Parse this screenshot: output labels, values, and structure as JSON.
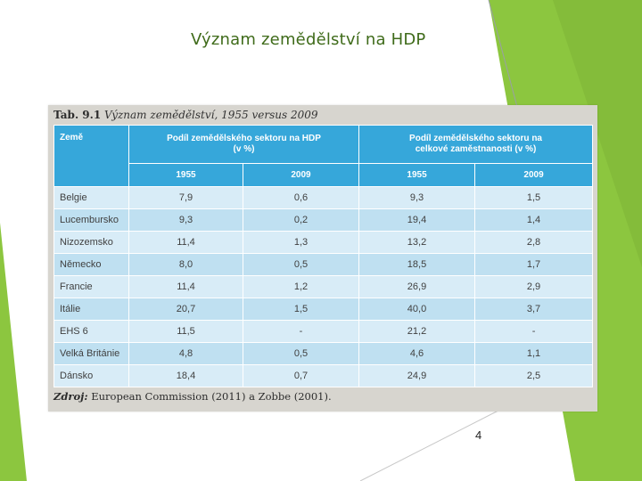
{
  "slide": {
    "title": "Význam zemědělství na HDP",
    "page_number": "4"
  },
  "figure": {
    "caption_label": "Tab. 9.1",
    "caption_text": "Význam zemědělství, 1955 versus 2009",
    "source_label": "Zdroj:",
    "source_text": "European Commission (2011) a Zobbe (2001)."
  },
  "table": {
    "col_country": "Země",
    "group_gdp": "Podíl zemědělského sektoru na HDP (v %)",
    "group_emp": "Podíl zemědělského sektoru na celkové zaměstnanosti (v %)",
    "year_a": "1955",
    "year_b": "2009",
    "rows": [
      {
        "country": "Belgie",
        "gdp_1955": "7,9",
        "gdp_2009": "0,6",
        "emp_1955": "9,3",
        "emp_2009": "1,5"
      },
      {
        "country": "Lucembursko",
        "gdp_1955": "9,3",
        "gdp_2009": "0,2",
        "emp_1955": "19,4",
        "emp_2009": "1,4"
      },
      {
        "country": "Nizozemsko",
        "gdp_1955": "11,4",
        "gdp_2009": "1,3",
        "emp_1955": "13,2",
        "emp_2009": "2,8"
      },
      {
        "country": "Německo",
        "gdp_1955": "8,0",
        "gdp_2009": "0,5",
        "emp_1955": "18,5",
        "emp_2009": "1,7"
      },
      {
        "country": "Francie",
        "gdp_1955": "11,4",
        "gdp_2009": "1,2",
        "emp_1955": "26,9",
        "emp_2009": "2,9"
      },
      {
        "country": "Itálie",
        "gdp_1955": "20,7",
        "gdp_2009": "1,5",
        "emp_1955": "40,0",
        "emp_2009": "3,7"
      },
      {
        "country": "EHS 6",
        "gdp_1955": "11,5",
        "gdp_2009": "-",
        "emp_1955": "21,2",
        "emp_2009": "-"
      },
      {
        "country": "Velká Británie",
        "gdp_1955": "4,8",
        "gdp_2009": "0,5",
        "emp_1955": "4,6",
        "emp_2009": "1,1"
      },
      {
        "country": "Dánsko",
        "gdp_1955": "18,4",
        "gdp_2009": "0,7",
        "emp_1955": "24,9",
        "emp_2009": "2,5"
      }
    ]
  },
  "colors": {
    "accent_green": "#8cc63f",
    "header_blue": "#36a7da",
    "row_light": "#d8ecf7",
    "row_dark": "#bfe0f1"
  }
}
